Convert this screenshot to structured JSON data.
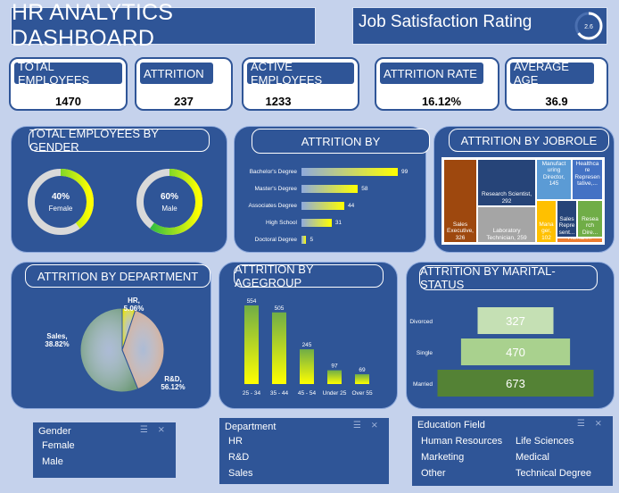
{
  "header": {
    "title": "HR ANALYTICS DASHBOARD"
  },
  "job_satisfaction": {
    "label": "Job Satisfaction Rating",
    "value": "2.6",
    "fraction": 0.65
  },
  "kpis": [
    {
      "label": "TOTAL EMPLOYEES",
      "value": "1470"
    },
    {
      "label": "ATTRITION",
      "value": "237"
    },
    {
      "label": "ACTIVE EMPLOYEES",
      "value": "1233"
    },
    {
      "label": "ATTRITION RATE",
      "value": "16.12%"
    },
    {
      "label": "AVERAGE AGE",
      "value": "36.9"
    }
  ],
  "gender_panel": {
    "title": "TOTAL EMPLOYEES BY GENDER",
    "items": [
      {
        "pct": "40%",
        "label": "Female",
        "fraction": 0.4
      },
      {
        "pct": "60%",
        "label": "Male",
        "fraction": 0.6
      }
    ]
  },
  "attrition_by": {
    "title": "ATTRITION BY",
    "chart_data": {
      "type": "bar",
      "orientation": "horizontal",
      "categories": [
        "Bachelor's Degree",
        "Master's Degree",
        "Associates Degree",
        "High School",
        "Doctoral Degree"
      ],
      "values": [
        99,
        58,
        44,
        31,
        5
      ],
      "xlim": [
        0,
        99
      ]
    }
  },
  "jobrole": {
    "title": "ATTRITION BY JOBROLE",
    "cells": [
      {
        "label": "Sales Executive, 326",
        "value": 326,
        "color": "#9e480e"
      },
      {
        "label": "Research Scientist, 292",
        "value": 292,
        "color": "#264478"
      },
      {
        "label": "Laboratory Technician, 259",
        "value": 259,
        "color": "#a5a5a5"
      },
      {
        "label": "Manufact uring Director, 145",
        "value": 145,
        "color": "#5b9bd5"
      },
      {
        "label": "Healthca re Represen tative,...",
        "value": 131,
        "color": "#4472c4"
      },
      {
        "label": "Mana ger, 102",
        "value": 102,
        "color": "#ffc000"
      },
      {
        "label": "Sales Repre sent...",
        "value": 83,
        "color": "#264478"
      },
      {
        "label": "Resea rch Dire...",
        "value": 80,
        "color": "#70ad47"
      },
      {
        "label": "Human...",
        "value": 52,
        "color": "#ed7d31"
      }
    ]
  },
  "department": {
    "title": "ATTRITION BY DEPARTMENT",
    "chart_data": {
      "type": "pie",
      "labels": [
        "HR",
        "Sales",
        "R&D"
      ],
      "percent_labels": [
        "5.06%",
        "38.82%",
        "56.12%"
      ],
      "values": [
        5.06,
        38.82,
        56.12
      ],
      "colors": [
        "#e8e20a",
        "#d9a98a",
        "#6f9a7a"
      ]
    }
  },
  "agegroup": {
    "title": "ATTRITION BY AGEGROUP",
    "chart_data": {
      "type": "bar",
      "categories": [
        "25 - 34",
        "35 - 44",
        "45 - 54",
        "Under 25",
        "Over 55"
      ],
      "values": [
        554,
        505,
        245,
        97,
        69
      ],
      "ylim": [
        0,
        554
      ]
    }
  },
  "marital": {
    "title": "ATTRITION BY MARITAL-STATUS",
    "chart_data": {
      "type": "bar",
      "orientation": "horizontal-funnel",
      "categories": [
        "Divorced",
        "Single",
        "Married"
      ],
      "values": [
        327,
        470,
        673
      ],
      "colors": [
        "#c5e0b4",
        "#a9d18e",
        "#548235"
      ]
    }
  },
  "slicers": {
    "gender": {
      "header": "Gender",
      "items": [
        "Female",
        "Male"
      ]
    },
    "department": {
      "header": "Department",
      "items": [
        "HR",
        "R&D",
        "Sales"
      ]
    },
    "education": {
      "header": "Education Field",
      "items": [
        "Human Resources",
        "Life Sciences",
        "Marketing",
        "Medical",
        "Other",
        "Technical Degree"
      ]
    }
  }
}
